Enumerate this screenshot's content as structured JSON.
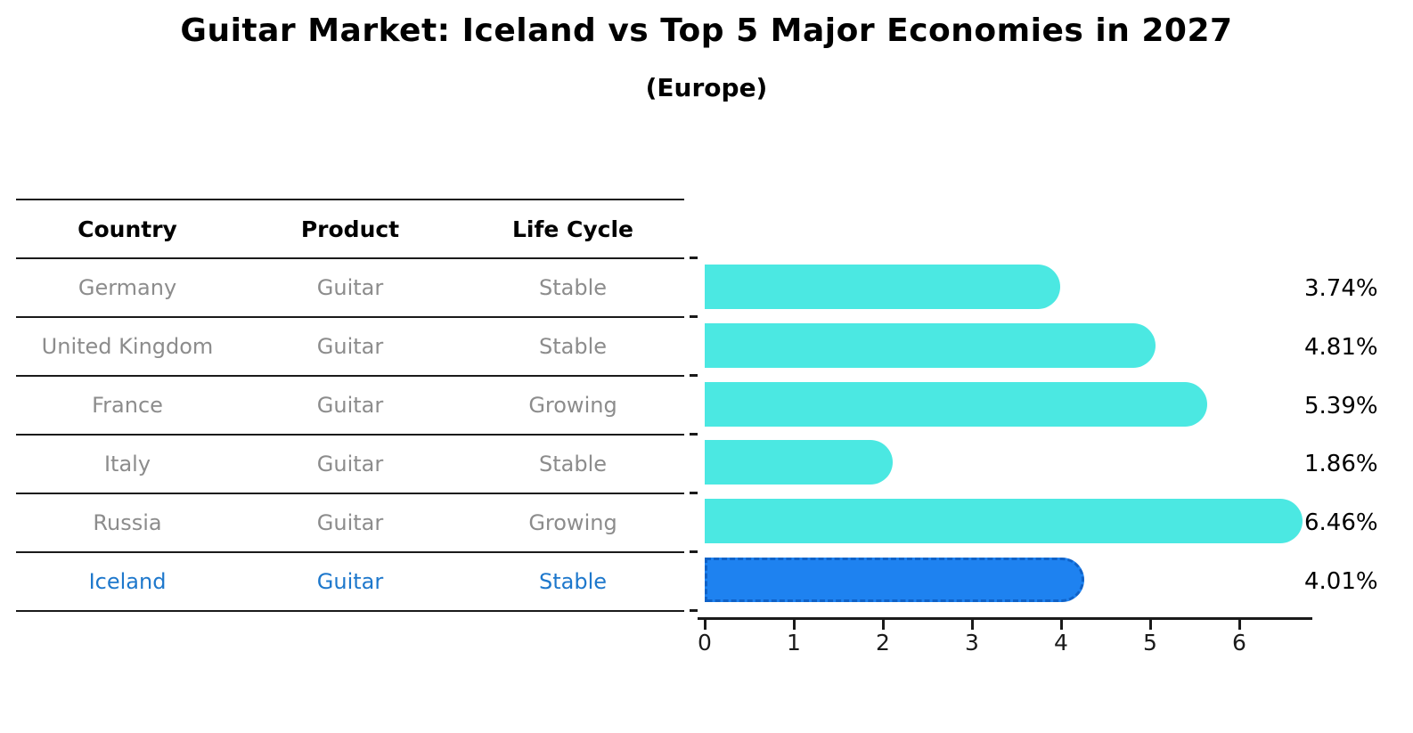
{
  "figure": {
    "title": "Guitar Market: Iceland vs Top 5 Major Economies in 2027",
    "subtitle": "(Europe)"
  },
  "table": {
    "headers": [
      "Country",
      "Product",
      "Life Cycle"
    ],
    "rows": [
      {
        "country": "Germany",
        "product": "Guitar",
        "life_cycle": "Stable",
        "highlighted": false
      },
      {
        "country": "United Kingdom",
        "product": "Guitar",
        "life_cycle": "Stable",
        "highlighted": false
      },
      {
        "country": "France",
        "product": "Guitar",
        "life_cycle": "Growing",
        "highlighted": false
      },
      {
        "country": "Italy",
        "product": "Guitar",
        "life_cycle": "Stable",
        "highlighted": false
      },
      {
        "country": "Russia",
        "product": "Guitar",
        "life_cycle": "Growing",
        "highlighted": false
      },
      {
        "country": "Iceland",
        "product": "Guitar",
        "life_cycle": "Stable",
        "highlighted": true
      }
    ]
  },
  "chart_data": {
    "type": "bar",
    "orientation": "horizontal",
    "title": "Guitar Market: Iceland vs Top 5 Major Economies in 2027",
    "subtitle": "(Europe)",
    "categories": [
      "Germany",
      "United Kingdom",
      "France",
      "Italy",
      "Russia",
      "Iceland"
    ],
    "values": [
      3.74,
      4.81,
      5.39,
      1.86,
      6.46,
      4.01
    ],
    "value_labels": [
      "3.74%",
      "4.81%",
      "5.39%",
      "1.86%",
      "6.46%",
      "4.01%"
    ],
    "highlight_index": 5,
    "xticks": [
      "0",
      "1",
      "2",
      "3",
      "4",
      "5",
      "6"
    ],
    "xlim": [
      0,
      6.9
    ],
    "grid": false,
    "legend": null
  },
  "colors": {
    "bar": "#4be8e2",
    "highlight_bar": "#1e82f0",
    "highlight_border": "#0f62c8",
    "highlight_text": "#1e78cc",
    "row_text": "#8c8c8c",
    "header_text": "#000000",
    "axis": "#1a1a1a"
  }
}
